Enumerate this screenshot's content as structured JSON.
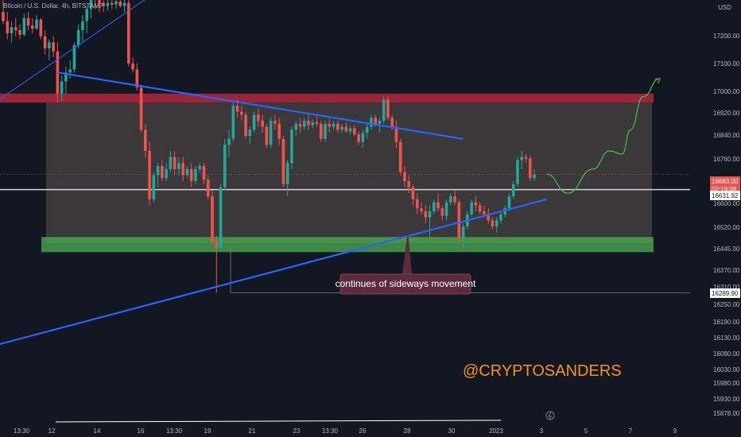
{
  "header": {
    "symbol": "Bitcoin / U.S. Dollar, 4h, BITSTAMP",
    "currency": "USD"
  },
  "colors": {
    "background": "#131722",
    "up": "#26a69a",
    "down": "#ef5350",
    "trendline": "#2962ff",
    "resistance": "#b2283c",
    "support": "#4caf50",
    "range": "#5d534d",
    "watermark": "#f7931a",
    "projection": "#43c443"
  },
  "chart_data": {
    "type": "candlestick",
    "title": "Bitcoin / U.S. Dollar, 4h, BITSTAMP",
    "ylabel": "USD",
    "ylim": [
      15860,
      17260
    ],
    "y_scale": "linear",
    "y_ticks": [
      "17200.00",
      "17100.00",
      "17000.00",
      "16920.00",
      "16840.00",
      "16760.00",
      "16680.00",
      "16600.00",
      "16520.00",
      "16445.00",
      "16370.00",
      "16310.00",
      "16250.00",
      "16190.00",
      "16130.00",
      "16080.00",
      "16030.00",
      "15980.00",
      "15930.00",
      "15878.00"
    ],
    "x_tick_labels": [
      "13:30",
      "12",
      "14",
      "16",
      "13:30",
      "19",
      "21",
      "23",
      "13:30",
      "26",
      "28",
      "30",
      "2023",
      "3",
      "5",
      "7",
      "9"
    ],
    "grid": false,
    "price_labels": {
      "last_price": "16683.00",
      "countdown": "02:19:08",
      "horizontal_level": "16631.92",
      "low_marker": "16289.90"
    },
    "zones": [
      {
        "name": "resistance",
        "from": 16920,
        "to": 16950
      },
      {
        "name": "range",
        "from": 16455,
        "to": 16920
      },
      {
        "name": "support",
        "from": 16425,
        "to": 16475
      }
    ],
    "horizontal_lines": [
      16631.92,
      16289.9
    ],
    "annotation": "continues of sideways movement",
    "watermark": "@CRYPTOSANDERS",
    "candles": [
      {
        "o": 17220,
        "h": 17290,
        "l": 17180,
        "c": 17190
      },
      {
        "o": 17190,
        "h": 17220,
        "l": 17130,
        "c": 17150
      },
      {
        "o": 17150,
        "h": 17190,
        "l": 17120,
        "c": 17170
      },
      {
        "o": 17170,
        "h": 17200,
        "l": 17140,
        "c": 17160
      },
      {
        "o": 17160,
        "h": 17180,
        "l": 17130,
        "c": 17145
      },
      {
        "o": 17145,
        "h": 17215,
        "l": 17140,
        "c": 17200
      },
      {
        "o": 17200,
        "h": 17220,
        "l": 17160,
        "c": 17175
      },
      {
        "o": 17175,
        "h": 17200,
        "l": 17150,
        "c": 17165
      },
      {
        "o": 17165,
        "h": 17210,
        "l": 17160,
        "c": 17195
      },
      {
        "o": 17195,
        "h": 17200,
        "l": 17130,
        "c": 17140
      },
      {
        "o": 17140,
        "h": 17160,
        "l": 17080,
        "c": 17100
      },
      {
        "o": 17100,
        "h": 17130,
        "l": 17060,
        "c": 17120
      },
      {
        "o": 17120,
        "h": 17140,
        "l": 17070,
        "c": 17090
      },
      {
        "o": 17090,
        "h": 17120,
        "l": 16920,
        "c": 16950
      },
      {
        "o": 16950,
        "h": 17010,
        "l": 16925,
        "c": 16990
      },
      {
        "o": 16990,
        "h": 17040,
        "l": 16950,
        "c": 17020
      },
      {
        "o": 17020,
        "h": 17060,
        "l": 17000,
        "c": 17030
      },
      {
        "o": 17030,
        "h": 17120,
        "l": 17020,
        "c": 17110
      },
      {
        "o": 17110,
        "h": 17180,
        "l": 17100,
        "c": 17160
      },
      {
        "o": 17160,
        "h": 17210,
        "l": 17120,
        "c": 17190
      },
      {
        "o": 17190,
        "h": 17240,
        "l": 17150,
        "c": 17230
      },
      {
        "o": 17230,
        "h": 17290,
        "l": 17200,
        "c": 17280
      },
      {
        "o": 17280,
        "h": 17290,
        "l": 17230,
        "c": 17260
      },
      {
        "o": 17260,
        "h": 17270,
        "l": 17220,
        "c": 17250
      },
      {
        "o": 17250,
        "h": 17270,
        "l": 17220,
        "c": 17240
      },
      {
        "o": 17240,
        "h": 17265,
        "l": 17225,
        "c": 17250
      },
      {
        "o": 17250,
        "h": 17270,
        "l": 17230,
        "c": 17245
      },
      {
        "o": 17245,
        "h": 17265,
        "l": 17230,
        "c": 17255
      },
      {
        "o": 17255,
        "h": 17275,
        "l": 17235,
        "c": 17240
      },
      {
        "o": 17240,
        "h": 17260,
        "l": 17220,
        "c": 17250
      },
      {
        "o": 17250,
        "h": 17290,
        "l": 17040,
        "c": 17050
      },
      {
        "o": 17050,
        "h": 17070,
        "l": 17020,
        "c": 17030
      },
      {
        "o": 17030,
        "h": 17050,
        "l": 16960,
        "c": 16970
      },
      {
        "o": 16970,
        "h": 16980,
        "l": 16820,
        "c": 16830
      },
      {
        "o": 16830,
        "h": 16850,
        "l": 16740,
        "c": 16760
      },
      {
        "o": 16760,
        "h": 16790,
        "l": 16580,
        "c": 16600
      },
      {
        "o": 16600,
        "h": 16690,
        "l": 16590,
        "c": 16680
      },
      {
        "o": 16680,
        "h": 16720,
        "l": 16640,
        "c": 16710
      },
      {
        "o": 16710,
        "h": 16730,
        "l": 16660,
        "c": 16670
      },
      {
        "o": 16670,
        "h": 16720,
        "l": 16660,
        "c": 16700
      },
      {
        "o": 16700,
        "h": 16760,
        "l": 16690,
        "c": 16740
      },
      {
        "o": 16740,
        "h": 16760,
        "l": 16680,
        "c": 16700
      },
      {
        "o": 16700,
        "h": 16740,
        "l": 16680,
        "c": 16720
      },
      {
        "o": 16720,
        "h": 16740,
        "l": 16660,
        "c": 16680
      },
      {
        "o": 16680,
        "h": 16710,
        "l": 16670,
        "c": 16700
      },
      {
        "o": 16700,
        "h": 16720,
        "l": 16640,
        "c": 16660
      },
      {
        "o": 16660,
        "h": 16710,
        "l": 16650,
        "c": 16700
      },
      {
        "o": 16700,
        "h": 16720,
        "l": 16690,
        "c": 16710
      },
      {
        "o": 16710,
        "h": 16720,
        "l": 16650,
        "c": 16665
      },
      {
        "o": 16665,
        "h": 16680,
        "l": 16600,
        "c": 16610
      },
      {
        "o": 16610,
        "h": 16630,
        "l": 16450,
        "c": 16460
      },
      {
        "o": 16460,
        "h": 16480,
        "l": 16290,
        "c": 16440
      },
      {
        "o": 16440,
        "h": 16650,
        "l": 16430,
        "c": 16640
      },
      {
        "o": 16640,
        "h": 16800,
        "l": 16630,
        "c": 16780
      },
      {
        "o": 16780,
        "h": 16830,
        "l": 16740,
        "c": 16800
      },
      {
        "o": 16800,
        "h": 16920,
        "l": 16790,
        "c": 16910
      },
      {
        "o": 16910,
        "h": 16930,
        "l": 16870,
        "c": 16890
      },
      {
        "o": 16890,
        "h": 16910,
        "l": 16860,
        "c": 16880
      },
      {
        "o": 16880,
        "h": 16890,
        "l": 16800,
        "c": 16810
      },
      {
        "o": 16810,
        "h": 16840,
        "l": 16780,
        "c": 16830
      },
      {
        "o": 16830,
        "h": 16890,
        "l": 16820,
        "c": 16880
      },
      {
        "o": 16880,
        "h": 16900,
        "l": 16840,
        "c": 16860
      },
      {
        "o": 16860,
        "h": 16880,
        "l": 16820,
        "c": 16840
      },
      {
        "o": 16840,
        "h": 16850,
        "l": 16770,
        "c": 16780
      },
      {
        "o": 16780,
        "h": 16870,
        "l": 16770,
        "c": 16860
      },
      {
        "o": 16860,
        "h": 16880,
        "l": 16830,
        "c": 16850
      },
      {
        "o": 16850,
        "h": 16870,
        "l": 16780,
        "c": 16800
      },
      {
        "o": 16800,
        "h": 16810,
        "l": 16640,
        "c": 16650
      },
      {
        "o": 16650,
        "h": 16730,
        "l": 16610,
        "c": 16720
      },
      {
        "o": 16720,
        "h": 16840,
        "l": 16700,
        "c": 16830
      },
      {
        "o": 16830,
        "h": 16860,
        "l": 16810,
        "c": 16850
      },
      {
        "o": 16850,
        "h": 16870,
        "l": 16820,
        "c": 16840
      },
      {
        "o": 16840,
        "h": 16870,
        "l": 16830,
        "c": 16860
      },
      {
        "o": 16860,
        "h": 16880,
        "l": 16830,
        "c": 16845
      },
      {
        "o": 16845,
        "h": 16865,
        "l": 16835,
        "c": 16855
      },
      {
        "o": 16855,
        "h": 16875,
        "l": 16840,
        "c": 16850
      },
      {
        "o": 16850,
        "h": 16860,
        "l": 16790,
        "c": 16800
      },
      {
        "o": 16800,
        "h": 16860,
        "l": 16790,
        "c": 16850
      },
      {
        "o": 16850,
        "h": 16870,
        "l": 16820,
        "c": 16840
      },
      {
        "o": 16840,
        "h": 16860,
        "l": 16830,
        "c": 16850
      },
      {
        "o": 16850,
        "h": 16860,
        "l": 16820,
        "c": 16830
      },
      {
        "o": 16830,
        "h": 16850,
        "l": 16820,
        "c": 16840
      },
      {
        "o": 16840,
        "h": 16855,
        "l": 16820,
        "c": 16825
      },
      {
        "o": 16825,
        "h": 16845,
        "l": 16815,
        "c": 16835
      },
      {
        "o": 16835,
        "h": 16845,
        "l": 16810,
        "c": 16815
      },
      {
        "o": 16815,
        "h": 16825,
        "l": 16780,
        "c": 16790
      },
      {
        "o": 16790,
        "h": 16830,
        "l": 16770,
        "c": 16820
      },
      {
        "o": 16820,
        "h": 16850,
        "l": 16800,
        "c": 16840
      },
      {
        "o": 16840,
        "h": 16880,
        "l": 16830,
        "c": 16870
      },
      {
        "o": 16870,
        "h": 16880,
        "l": 16840,
        "c": 16850
      },
      {
        "o": 16850,
        "h": 16870,
        "l": 16820,
        "c": 16860
      },
      {
        "o": 16860,
        "h": 16940,
        "l": 16850,
        "c": 16930
      },
      {
        "o": 16930,
        "h": 16940,
        "l": 16860,
        "c": 16870
      },
      {
        "o": 16870,
        "h": 16880,
        "l": 16830,
        "c": 16840
      },
      {
        "o": 16840,
        "h": 16860,
        "l": 16770,
        "c": 16790
      },
      {
        "o": 16790,
        "h": 16800,
        "l": 16680,
        "c": 16690
      },
      {
        "o": 16690,
        "h": 16710,
        "l": 16640,
        "c": 16660
      },
      {
        "o": 16660,
        "h": 16680,
        "l": 16620,
        "c": 16640
      },
      {
        "o": 16640,
        "h": 16650,
        "l": 16580,
        "c": 16600
      },
      {
        "o": 16600,
        "h": 16620,
        "l": 16550,
        "c": 16570
      },
      {
        "o": 16570,
        "h": 16590,
        "l": 16550,
        "c": 16560
      },
      {
        "o": 16560,
        "h": 16580,
        "l": 16520,
        "c": 16540
      },
      {
        "o": 16540,
        "h": 16580,
        "l": 16470,
        "c": 16560
      },
      {
        "o": 16560,
        "h": 16600,
        "l": 16550,
        "c": 16590
      },
      {
        "o": 16590,
        "h": 16620,
        "l": 16560,
        "c": 16570
      },
      {
        "o": 16570,
        "h": 16580,
        "l": 16530,
        "c": 16545
      },
      {
        "o": 16545,
        "h": 16600,
        "l": 16530,
        "c": 16590
      },
      {
        "o": 16590,
        "h": 16620,
        "l": 16580,
        "c": 16610
      },
      {
        "o": 16610,
        "h": 16630,
        "l": 16580,
        "c": 16590
      },
      {
        "o": 16590,
        "h": 16600,
        "l": 16450,
        "c": 16470
      },
      {
        "o": 16470,
        "h": 16520,
        "l": 16440,
        "c": 16510
      },
      {
        "o": 16510,
        "h": 16560,
        "l": 16500,
        "c": 16550
      },
      {
        "o": 16550,
        "h": 16600,
        "l": 16540,
        "c": 16590
      },
      {
        "o": 16590,
        "h": 16610,
        "l": 16560,
        "c": 16580
      },
      {
        "o": 16580,
        "h": 16590,
        "l": 16550,
        "c": 16560
      },
      {
        "o": 16560,
        "h": 16580,
        "l": 16540,
        "c": 16550
      },
      {
        "o": 16550,
        "h": 16570,
        "l": 16520,
        "c": 16530
      },
      {
        "o": 16530,
        "h": 16540,
        "l": 16500,
        "c": 16510
      },
      {
        "o": 16510,
        "h": 16540,
        "l": 16490,
        "c": 16530
      },
      {
        "o": 16530,
        "h": 16560,
        "l": 16520,
        "c": 16550
      },
      {
        "o": 16550,
        "h": 16580,
        "l": 16540,
        "c": 16570
      },
      {
        "o": 16570,
        "h": 16620,
        "l": 16560,
        "c": 16610
      },
      {
        "o": 16610,
        "h": 16660,
        "l": 16600,
        "c": 16650
      },
      {
        "o": 16650,
        "h": 16740,
        "l": 16640,
        "c": 16730
      },
      {
        "o": 16730,
        "h": 16760,
        "l": 16700,
        "c": 16740
      },
      {
        "o": 16740,
        "h": 16750,
        "l": 16720,
        "c": 16735
      },
      {
        "o": 16735,
        "h": 16745,
        "l": 16660,
        "c": 16670
      },
      {
        "o": 16670,
        "h": 16700,
        "l": 16660,
        "c": 16683
      }
    ],
    "trendlines": [
      {
        "name": "upper-falling",
        "points": [
          [
            13,
            17020
          ],
          [
            110,
            16800
          ]
        ]
      },
      {
        "name": "lower-rising",
        "points": [
          [
            -20,
            16050
          ],
          [
            130,
            16600
          ]
        ]
      },
      {
        "name": "left-steep",
        "points": [
          [
            -20,
            16750
          ],
          [
            38,
            17300
          ]
        ]
      }
    ],
    "projection_path": [
      [
        130,
        16683
      ],
      [
        135,
        16620
      ],
      [
        141,
        16700
      ],
      [
        145,
        16760
      ],
      [
        148,
        16750
      ],
      [
        150,
        16830
      ],
      [
        153,
        16940
      ],
      [
        157,
        17000
      ]
    ]
  }
}
